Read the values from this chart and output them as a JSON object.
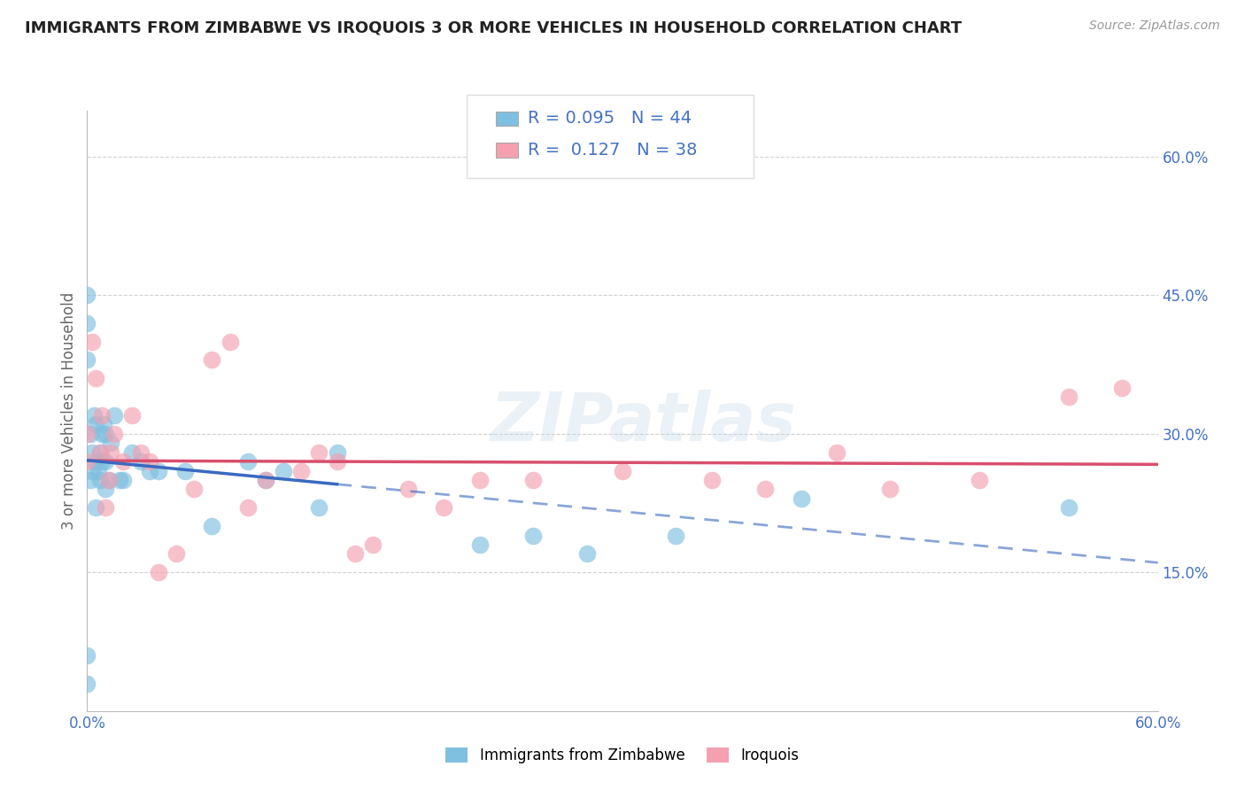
{
  "title": "IMMIGRANTS FROM ZIMBABWE VS IROQUOIS 3 OR MORE VEHICLES IN HOUSEHOLD CORRELATION CHART",
  "source": "Source: ZipAtlas.com",
  "ylabel_label": "3 or more Vehicles in Household",
  "ytick_labels": [
    "15.0%",
    "30.0%",
    "45.0%",
    "60.0%"
  ],
  "ytick_values": [
    0.15,
    0.3,
    0.45,
    0.6
  ],
  "xlim": [
    0.0,
    0.6
  ],
  "ylim": [
    0.0,
    0.65
  ],
  "legend_label1": "Immigrants from Zimbabwe",
  "legend_label2": "Iroquois",
  "R1": 0.095,
  "N1": 44,
  "R2": 0.127,
  "N2": 38,
  "color_blue": "#7fbfdf",
  "color_pink": "#f4a0b0",
  "color_blue_line": "#3a6abf",
  "color_pink_line": "#d94f6e",
  "watermark": "ZIPatlas",
  "blue_x": [
    0.0,
    0.0,
    0.0,
    0.0,
    0.0,
    0.002,
    0.002,
    0.003,
    0.003,
    0.004,
    0.005,
    0.005,
    0.005,
    0.006,
    0.007,
    0.007,
    0.008,
    0.008,
    0.009,
    0.01,
    0.01,
    0.01,
    0.012,
    0.013,
    0.015,
    0.018,
    0.02,
    0.025,
    0.03,
    0.035,
    0.04,
    0.055,
    0.07,
    0.09,
    0.1,
    0.11,
    0.13,
    0.14,
    0.22,
    0.25,
    0.28,
    0.33,
    0.4,
    0.55
  ],
  "blue_y": [
    0.03,
    0.06,
    0.45,
    0.38,
    0.42,
    0.25,
    0.3,
    0.26,
    0.28,
    0.32,
    0.22,
    0.27,
    0.31,
    0.26,
    0.28,
    0.25,
    0.3,
    0.27,
    0.31,
    0.24,
    0.27,
    0.3,
    0.25,
    0.29,
    0.32,
    0.25,
    0.25,
    0.28,
    0.27,
    0.26,
    0.26,
    0.26,
    0.2,
    0.27,
    0.25,
    0.26,
    0.22,
    0.28,
    0.18,
    0.19,
    0.17,
    0.19,
    0.23,
    0.22
  ],
  "pink_x": [
    0.0,
    0.0,
    0.003,
    0.005,
    0.007,
    0.008,
    0.01,
    0.012,
    0.013,
    0.015,
    0.02,
    0.025,
    0.03,
    0.035,
    0.04,
    0.05,
    0.06,
    0.07,
    0.08,
    0.09,
    0.1,
    0.12,
    0.13,
    0.14,
    0.15,
    0.16,
    0.18,
    0.2,
    0.22,
    0.25,
    0.3,
    0.35,
    0.38,
    0.42,
    0.45,
    0.5,
    0.55,
    0.58
  ],
  "pink_y": [
    0.27,
    0.3,
    0.4,
    0.36,
    0.28,
    0.32,
    0.22,
    0.25,
    0.28,
    0.3,
    0.27,
    0.32,
    0.28,
    0.27,
    0.15,
    0.17,
    0.24,
    0.38,
    0.4,
    0.22,
    0.25,
    0.26,
    0.28,
    0.27,
    0.17,
    0.18,
    0.24,
    0.22,
    0.25,
    0.25,
    0.26,
    0.25,
    0.24,
    0.28,
    0.24,
    0.25,
    0.34,
    0.35
  ]
}
